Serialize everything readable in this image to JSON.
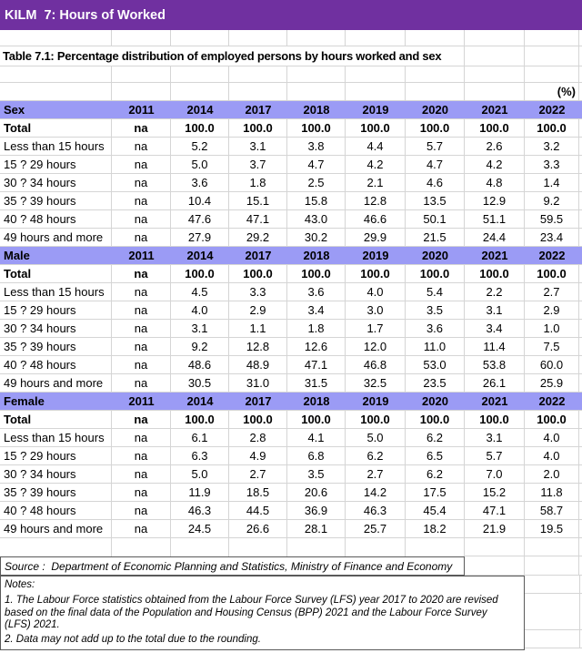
{
  "header": {
    "title": "KILM  7: Hours of Worked"
  },
  "table": {
    "title": "Table 7.1: Percentage distribution of employed persons by hours worked and sex",
    "unit": "(%)",
    "year_columns": [
      "2011",
      "2014",
      "2017",
      "2018",
      "2019",
      "2020",
      "2021",
      "2022"
    ],
    "sections": [
      {
        "name": "Sex",
        "rows": [
          {
            "label": "Total",
            "bold": true,
            "values": [
              "na",
              "100.0",
              "100.0",
              "100.0",
              "100.0",
              "100.0",
              "100.0",
              "100.0"
            ]
          },
          {
            "label": "Less than 15 hours",
            "bold": false,
            "values": [
              "na",
              "5.2",
              "3.1",
              "3.8",
              "4.4",
              "5.7",
              "2.6",
              "3.2"
            ]
          },
          {
            "label": "15 ? 29 hours",
            "bold": false,
            "values": [
              "na",
              "5.0",
              "3.7",
              "4.7",
              "4.2",
              "4.7",
              "4.2",
              "3.3"
            ]
          },
          {
            "label": "30 ? 34 hours",
            "bold": false,
            "values": [
              "na",
              "3.6",
              "1.8",
              "2.5",
              "2.1",
              "4.6",
              "4.8",
              "1.4"
            ]
          },
          {
            "label": "35 ? 39 hours",
            "bold": false,
            "values": [
              "na",
              "10.4",
              "15.1",
              "15.8",
              "12.8",
              "13.5",
              "12.9",
              "9.2"
            ]
          },
          {
            "label": "40 ? 48 hours",
            "bold": false,
            "values": [
              "na",
              "47.6",
              "47.1",
              "43.0",
              "46.6",
              "50.1",
              "51.1",
              "59.5"
            ]
          },
          {
            "label": "49 hours and more",
            "bold": false,
            "values": [
              "na",
              "27.9",
              "29.2",
              "30.2",
              "29.9",
              "21.5",
              "24.4",
              "23.4"
            ]
          }
        ]
      },
      {
        "name": "Male",
        "rows": [
          {
            "label": "Total",
            "bold": true,
            "values": [
              "na",
              "100.0",
              "100.0",
              "100.0",
              "100.0",
              "100.0",
              "100.0",
              "100.0"
            ]
          },
          {
            "label": "Less than 15 hours",
            "bold": false,
            "values": [
              "na",
              "4.5",
              "3.3",
              "3.6",
              "4.0",
              "5.4",
              "2.2",
              "2.7"
            ]
          },
          {
            "label": "15 ? 29 hours",
            "bold": false,
            "values": [
              "na",
              "4.0",
              "2.9",
              "3.4",
              "3.0",
              "3.5",
              "3.1",
              "2.9"
            ]
          },
          {
            "label": "30 ? 34 hours",
            "bold": false,
            "values": [
              "na",
              "3.1",
              "1.1",
              "1.8",
              "1.7",
              "3.6",
              "3.4",
              "1.0"
            ]
          },
          {
            "label": "35 ? 39 hours",
            "bold": false,
            "values": [
              "na",
              "9.2",
              "12.8",
              "12.6",
              "12.0",
              "11.0",
              "11.4",
              "7.5"
            ]
          },
          {
            "label": "40 ? 48 hours",
            "bold": false,
            "values": [
              "na",
              "48.6",
              "48.9",
              "47.1",
              "46.8",
              "53.0",
              "53.8",
              "60.0"
            ]
          },
          {
            "label": "49 hours and more",
            "bold": false,
            "values": [
              "na",
              "30.5",
              "31.0",
              "31.5",
              "32.5",
              "23.5",
              "26.1",
              "25.9"
            ]
          }
        ]
      },
      {
        "name": "Female",
        "rows": [
          {
            "label": "Total",
            "bold": true,
            "values": [
              "na",
              "100.0",
              "100.0",
              "100.0",
              "100.0",
              "100.0",
              "100.0",
              "100.0"
            ]
          },
          {
            "label": "Less than 15 hours",
            "bold": false,
            "values": [
              "na",
              "6.1",
              "2.8",
              "4.1",
              "5.0",
              "6.2",
              "3.1",
              "4.0"
            ]
          },
          {
            "label": "15 ? 29 hours",
            "bold": false,
            "values": [
              "na",
              "6.3",
              "4.9",
              "6.8",
              "6.2",
              "6.5",
              "5.7",
              "4.0"
            ]
          },
          {
            "label": "30 ? 34 hours",
            "bold": false,
            "values": [
              "na",
              "5.0",
              "2.7",
              "3.5",
              "2.7",
              "6.2",
              "7.0",
              "2.0"
            ]
          },
          {
            "label": "35 ? 39 hours",
            "bold": false,
            "values": [
              "na",
              "11.9",
              "18.5",
              "20.6",
              "14.2",
              "17.5",
              "15.2",
              "11.8"
            ]
          },
          {
            "label": "40 ? 48 hours",
            "bold": false,
            "values": [
              "na",
              "46.3",
              "44.5",
              "36.9",
              "46.3",
              "45.4",
              "47.1",
              "58.7"
            ]
          },
          {
            "label": "49 hours and more",
            "bold": false,
            "values": [
              "na",
              "24.5",
              "26.6",
              "28.1",
              "25.7",
              "18.2",
              "21.9",
              "19.5"
            ]
          }
        ]
      }
    ]
  },
  "footer": {
    "source": "Source :  Department of Economic Planning and Statistics, Ministry of Finance and Economy",
    "notes_label": "Notes:",
    "notes": [
      "1. The Labour Force statistics obtained from the Labour Force Survey (LFS) year 2017 to 2020 are revised based on the final data of the Population and Housing Census (BPP) 2021 and the Labour Force Survey (LFS) 2021.",
      "2. Data may not add up to the total due to the rounding."
    ]
  },
  "colors": {
    "title_bar": "#7030A0",
    "section_header": "#9B9BF5",
    "gridline": "#D5D5D5",
    "box_border": "#5A5A5A"
  }
}
